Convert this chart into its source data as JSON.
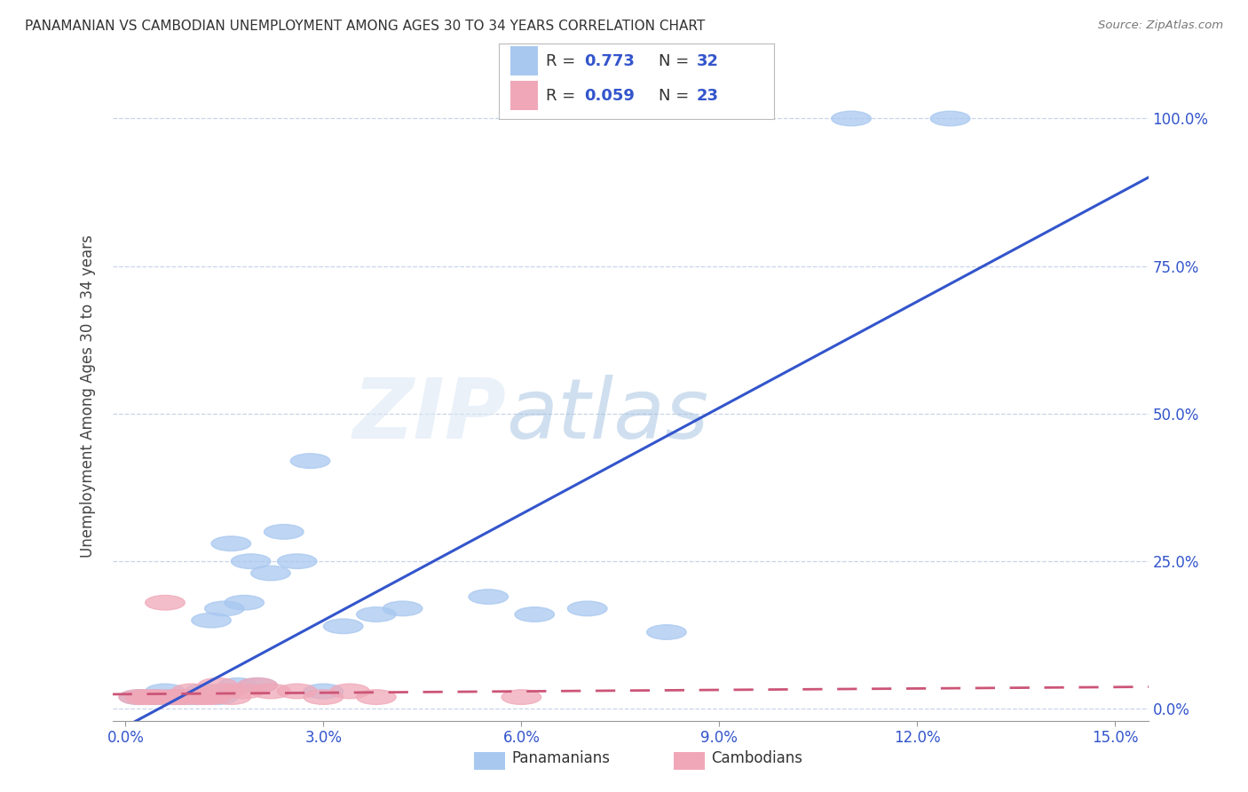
{
  "title": "PANAMANIAN VS CAMBODIAN UNEMPLOYMENT AMONG AGES 30 TO 34 YEARS CORRELATION CHART",
  "source": "Source: ZipAtlas.com",
  "xlabel_ticks": [
    "0.0%",
    "3.0%",
    "6.0%",
    "9.0%",
    "12.0%",
    "15.0%"
  ],
  "xlabel_vals": [
    0.0,
    0.03,
    0.06,
    0.09,
    0.12,
    0.15
  ],
  "ylabel": "Unemployment Among Ages 30 to 34 years",
  "ylabel_ticks": [
    "0.0%",
    "25.0%",
    "50.0%",
    "75.0%",
    "100.0%"
  ],
  "ylabel_vals": [
    0.0,
    0.25,
    0.5,
    0.75,
    1.0
  ],
  "xlim": [
    -0.002,
    0.155
  ],
  "ylim": [
    -0.02,
    1.08
  ],
  "panamanian_color": "#a8c8f0",
  "cambodian_color": "#f0a8b8",
  "trend_blue": "#3355cc",
  "trend_pink": "#cc5577",
  "R_pan": 0.773,
  "N_pan": 32,
  "R_cam": 0.059,
  "N_cam": 23,
  "pan_x": [
    0.002,
    0.004,
    0.005,
    0.006,
    0.007,
    0.008,
    0.009,
    0.01,
    0.011,
    0.012,
    0.013,
    0.014,
    0.015,
    0.016,
    0.017,
    0.018,
    0.019,
    0.02,
    0.022,
    0.024,
    0.026,
    0.028,
    0.03,
    0.033,
    0.038,
    0.042,
    0.055,
    0.062,
    0.07,
    0.082,
    0.11,
    0.125
  ],
  "pan_y": [
    0.02,
    0.02,
    0.02,
    0.03,
    0.02,
    0.02,
    0.02,
    0.02,
    0.02,
    0.03,
    0.15,
    0.02,
    0.17,
    0.28,
    0.04,
    0.18,
    0.25,
    0.04,
    0.23,
    0.3,
    0.25,
    0.42,
    0.03,
    0.14,
    0.16,
    0.17,
    0.19,
    0.16,
    0.17,
    0.13,
    1.0,
    1.0
  ],
  "cam_x": [
    0.002,
    0.003,
    0.004,
    0.005,
    0.006,
    0.007,
    0.008,
    0.009,
    0.01,
    0.011,
    0.012,
    0.013,
    0.014,
    0.015,
    0.016,
    0.018,
    0.02,
    0.022,
    0.026,
    0.03,
    0.034,
    0.038,
    0.06
  ],
  "cam_y": [
    0.02,
    0.02,
    0.02,
    0.02,
    0.18,
    0.02,
    0.02,
    0.02,
    0.03,
    0.02,
    0.02,
    0.02,
    0.04,
    0.03,
    0.02,
    0.03,
    0.04,
    0.03,
    0.03,
    0.02,
    0.03,
    0.02,
    0.02
  ],
  "watermark_zip": "ZIP",
  "watermark_atlas": "atlas",
  "background_color": "#ffffff",
  "grid_color": "#c8d4e8",
  "pan_trend_slope": 6.0,
  "pan_trend_intercept": -0.03,
  "cam_trend_slope": 0.08,
  "cam_trend_intercept": 0.025
}
